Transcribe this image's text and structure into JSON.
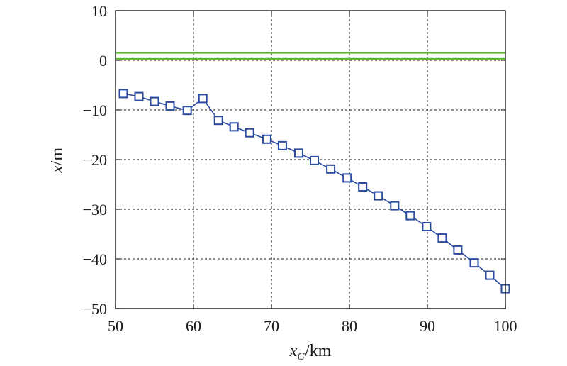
{
  "chart_data": {
    "type": "line",
    "title": "",
    "xlabel": {
      "var": "x",
      "sub": "G",
      "unit": "/km"
    },
    "ylabel": {
      "var": "x",
      "unit": "/m"
    },
    "xlim": [
      50,
      100
    ],
    "ylim": [
      -50,
      10
    ],
    "xticks": [
      50,
      60,
      70,
      80,
      90,
      100
    ],
    "yticks": [
      10,
      0,
      -10,
      -20,
      -30,
      -40,
      -50
    ],
    "xtick_labels": [
      "50",
      "60",
      "70",
      "80",
      "90",
      "100"
    ],
    "ytick_labels": [
      "10",
      "0",
      "−10",
      "−20",
      "−30",
      "−40",
      "−50"
    ],
    "grid": true,
    "legend": "none",
    "reference_lines": [
      {
        "y": 1.5,
        "color": "#5cb82e"
      },
      {
        "y": 0.3,
        "color": "#5cb82e"
      }
    ],
    "series": [
      {
        "marker": "square",
        "color": "#2a4aa0",
        "x": [
          51,
          53,
          55,
          57,
          59.2,
          61.2,
          63.2,
          65.2,
          67.2,
          69.4,
          71.4,
          73.5,
          75.5,
          77.6,
          79.7,
          81.7,
          83.7,
          85.8,
          87.8,
          89.9,
          91.9,
          93.9,
          96,
          98,
          100
        ],
        "y": [
          -6.7,
          -7.3,
          -8.3,
          -9.2,
          -10.1,
          -7.7,
          -12.1,
          -13.4,
          -14.6,
          -15.9,
          -17.2,
          -18.7,
          -20.2,
          -21.9,
          -23.7,
          -25.5,
          -27.3,
          -29.3,
          -31.3,
          -33.5,
          -35.8,
          -38.2,
          -40.8,
          -43.3,
          -46
        ]
      }
    ]
  }
}
